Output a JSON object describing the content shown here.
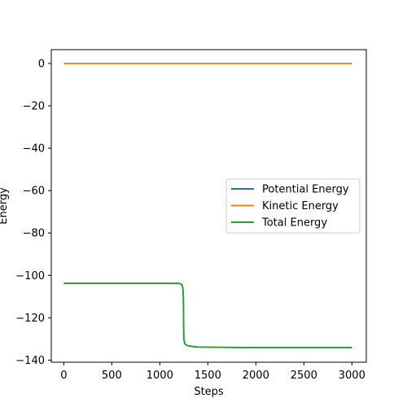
{
  "chart_data": {
    "type": "line",
    "title": "",
    "xlabel": "Steps",
    "ylabel": "Energy",
    "xlim": [
      -130,
      3150
    ],
    "ylim": [
      -141,
      6.5
    ],
    "xticks": [
      0,
      500,
      1000,
      1500,
      2000,
      2500,
      3000
    ],
    "yticks": [
      0,
      -20,
      -40,
      -60,
      -80,
      -100,
      -120,
      -140
    ],
    "xtick_labels": [
      "0",
      "500",
      "1000",
      "1500",
      "2000",
      "2500",
      "3000"
    ],
    "ytick_labels": [
      "0",
      "−20",
      "−40",
      "−60",
      "−80",
      "−100",
      "−120",
      "−140"
    ],
    "grid": false,
    "legend_position": "center-right",
    "series": [
      {
        "name": "Potential Energy",
        "color": "#1f77b4",
        "x": [
          0,
          500,
          1000,
          1200,
          1230,
          1240,
          1245,
          1250,
          1260,
          1280,
          1300,
          1350,
          1400,
          1500,
          1700,
          2000,
          2500,
          3000
        ],
        "y": [
          -103.7,
          -103.7,
          -103.7,
          -103.8,
          -104.3,
          -106,
          -110,
          -130,
          -132.3,
          -133,
          -133.3,
          -133.6,
          -133.8,
          -133.9,
          -134.0,
          -134.1,
          -134.1,
          -134.1
        ]
      },
      {
        "name": "Kinetic Energy",
        "color": "#ff7f0e",
        "x": [
          0,
          500,
          1000,
          1500,
          2000,
          2500,
          3000
        ],
        "y": [
          0,
          0,
          0,
          0,
          0,
          0,
          0
        ]
      },
      {
        "name": "Total Energy",
        "color": "#2ca02c",
        "x": [
          0,
          500,
          1000,
          1200,
          1230,
          1240,
          1245,
          1250,
          1260,
          1280,
          1300,
          1350,
          1400,
          1500,
          1700,
          2000,
          2500,
          3000
        ],
        "y": [
          -103.7,
          -103.7,
          -103.7,
          -103.8,
          -104.3,
          -106,
          -110,
          -130,
          -132.3,
          -133,
          -133.3,
          -133.6,
          -133.8,
          -133.9,
          -134.0,
          -134.1,
          -134.1,
          -134.1
        ]
      }
    ]
  }
}
